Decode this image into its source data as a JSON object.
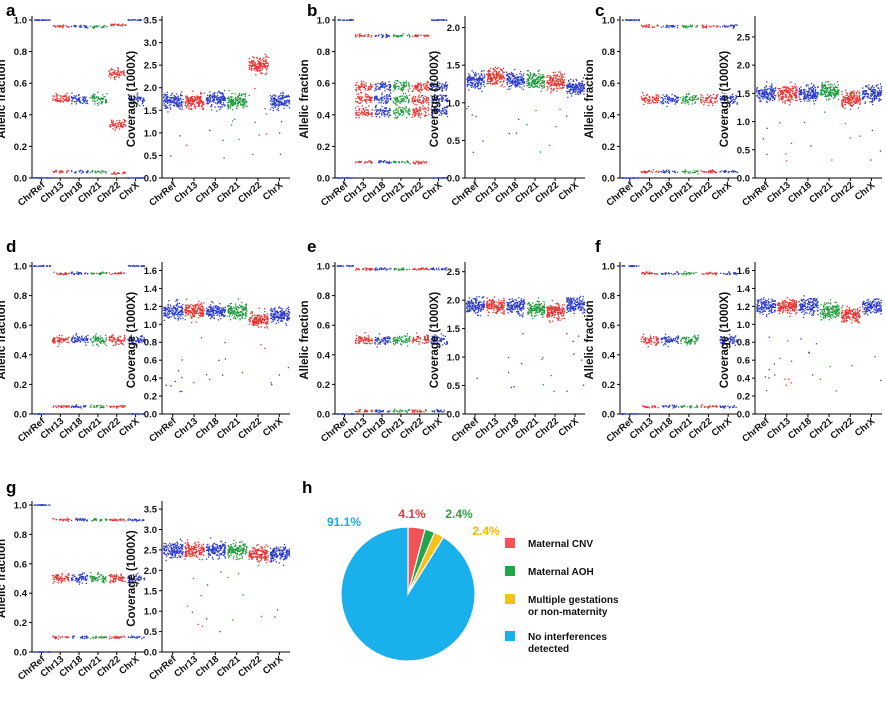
{
  "colors": {
    "ChrRef": "#2b3ac9",
    "Chr13": "#e8302e",
    "Chr18": "#2b3ac9",
    "Chr21": "#1f9a3a",
    "Chr22": "#e8302e",
    "ChrX": "#2b3ac9",
    "pie": [
      "#f05454",
      "#21a54a",
      "#f5c21a",
      "#19b0ec"
    ],
    "pie_label": [
      "#e53935",
      "#27a33f",
      "#f5b800",
      "#19a9e6"
    ]
  },
  "panels": [
    {
      "letter": "a",
      "af": {
        "ylabel": "Allelic fraction",
        "yticks": [
          "0.0",
          "0.2",
          "0.4",
          "0.6",
          "0.8",
          "1.0"
        ],
        "ylim": [
          0,
          1.0
        ],
        "categories": [
          "ChrRef",
          "Chr13",
          "Chr18",
          "Chr21",
          "Chr22",
          "ChrX"
        ],
        "bands": {
          "ChrRef": [
            0.0,
            1.0
          ],
          "Chr13": [
            0.04,
            0.5,
            0.96
          ],
          "Chr18": [
            0.04,
            0.5,
            0.96
          ],
          "Chr21": [
            0.04,
            0.5,
            0.96
          ],
          "Chr22": [
            0.03,
            0.34,
            0.66,
            0.97
          ],
          "ChrX": [
            0.0,
            0.5,
            1.0
          ]
        }
      },
      "cov": {
        "ylabel": "Coverage (1000X)",
        "yticks": [
          "0.0",
          "0.5",
          "1.0",
          "1.5",
          "2.0",
          "2.5",
          "3.0",
          "3.5"
        ],
        "ylim": [
          0,
          3.5
        ],
        "categories": [
          "ChrRef",
          "Chr13",
          "Chr18",
          "Chr21",
          "Chr22",
          "ChrX"
        ],
        "means": {
          "ChrRef": 1.7,
          "Chr13": 1.7,
          "Chr18": 1.75,
          "Chr21": 1.7,
          "Chr22": 2.5,
          "ChrX": 1.7
        }
      }
    },
    {
      "letter": "b",
      "af": {
        "ylabel": "Allelic fraction",
        "yticks": [
          "0.0",
          "0.2",
          "0.4",
          "0.6",
          "0.8",
          "1.0"
        ],
        "ylim": [
          0,
          1.0
        ],
        "categories": [
          "ChrRef",
          "Chr13",
          "Chr18",
          "Chr21",
          "Chr22",
          "ChrX"
        ],
        "bands": {
          "ChrRef": [
            0.0,
            1.0
          ],
          "Chr13": [
            0.1,
            0.42,
            0.5,
            0.58,
            0.9
          ],
          "Chr18": [
            0.1,
            0.42,
            0.5,
            0.58,
            0.9
          ],
          "Chr21": [
            0.1,
            0.42,
            0.5,
            0.58,
            0.9
          ],
          "Chr22": [
            0.1,
            0.42,
            0.5,
            0.58,
            0.9
          ],
          "ChrX": [
            0.0,
            0.42,
            0.5,
            0.58,
            1.0
          ]
        }
      },
      "cov": {
        "ylabel": "Coverage (1000X)",
        "yticks": [
          "0.0",
          "0.5",
          "1.0",
          "1.5",
          "2.0"
        ],
        "ylim": [
          0,
          2.1
        ],
        "categories": [
          "ChrRef",
          "Chr13",
          "Chr18",
          "Chr21",
          "Chr22",
          "ChrX"
        ],
        "means": {
          "ChrRef": 1.3,
          "Chr13": 1.35,
          "Chr18": 1.3,
          "Chr21": 1.3,
          "Chr22": 1.28,
          "ChrX": 1.2
        }
      }
    },
    {
      "letter": "c",
      "af": {
        "ylabel": "Allelic fraction",
        "yticks": [
          "0.0",
          "0.2",
          "0.4",
          "0.6",
          "0.8",
          "1.0"
        ],
        "ylim": [
          0,
          1.0
        ],
        "categories": [
          "ChrRef",
          "Chr13",
          "Chr18",
          "Chr21",
          "Chr22",
          "ChrX"
        ],
        "bands": {
          "ChrRef": [
            0.0,
            1.0
          ],
          "Chr13": [
            0.04,
            0.5,
            0.96
          ],
          "Chr18": [
            0.04,
            0.5,
            0.96
          ],
          "Chr21": [
            0.04,
            0.5,
            0.96
          ],
          "Chr22": [
            0.04,
            0.5,
            0.96
          ],
          "ChrX": [
            0.04,
            0.5,
            0.96
          ]
        }
      },
      "cov": {
        "ylabel": "Coverage (1000X)",
        "yticks": [
          "0.0",
          "0.5",
          "1.0",
          "1.5",
          "2.0",
          "2.5"
        ],
        "ylim": [
          0,
          2.8
        ],
        "categories": [
          "ChrRef",
          "Chr13",
          "Chr18",
          "Chr21",
          "Chr22",
          "ChrX"
        ],
        "means": {
          "ChrRef": 1.5,
          "Chr13": 1.5,
          "Chr18": 1.5,
          "Chr21": 1.55,
          "Chr22": 1.4,
          "ChrX": 1.5
        }
      }
    },
    {
      "letter": "d",
      "af": {
        "ylabel": "Allelic fraction",
        "yticks": [
          "0.0",
          "0.2",
          "0.4",
          "0.6",
          "0.8",
          "1.0"
        ],
        "ylim": [
          0,
          1.0
        ],
        "categories": [
          "ChrRef",
          "Chr13",
          "Chr18",
          "Chr21",
          "Chr22",
          "ChrX"
        ],
        "bands": {
          "ChrRef": [
            0.0,
            1.0
          ],
          "Chr13": [
            0.05,
            0.5,
            0.95
          ],
          "Chr18": [
            0.05,
            0.5,
            0.95
          ],
          "Chr21": [
            0.05,
            0.5,
            0.95
          ],
          "Chr22": [
            0.05,
            0.5,
            0.95
          ],
          "ChrX": [
            0.0,
            0.5,
            1.0
          ]
        }
      },
      "cov": {
        "ylabel": "Coverage (1000X)",
        "yticks": [
          "0.0",
          "0.2",
          "0.4",
          "0.6",
          "0.8",
          "1.0",
          "1.2",
          "1.4",
          "1.6"
        ],
        "ylim": [
          0,
          1.65
        ],
        "categories": [
          "ChrRef",
          "Chr13",
          "Chr18",
          "Chr21",
          "Chr22",
          "ChrX"
        ],
        "means": {
          "ChrRef": 1.15,
          "Chr13": 1.15,
          "Chr18": 1.15,
          "Chr21": 1.15,
          "Chr22": 1.05,
          "ChrX": 1.1
        }
      }
    },
    {
      "letter": "e",
      "af": {
        "ylabel": "Allelic fraction",
        "yticks": [
          "0.0",
          "0.2",
          "0.4",
          "0.6",
          "0.8",
          "1.0"
        ],
        "ylim": [
          0,
          1.0
        ],
        "categories": [
          "ChrRef",
          "Chr13",
          "Chr18",
          "Chr21",
          "Chr22",
          "ChrX"
        ],
        "bands": {
          "ChrRef": [
            0.0,
            1.0
          ],
          "Chr13": [
            0.02,
            0.5,
            0.98
          ],
          "Chr18": [
            0.02,
            0.5,
            0.98
          ],
          "Chr21": [
            0.02,
            0.5,
            0.98
          ],
          "Chr22": [
            0.02,
            0.5,
            0.98
          ],
          "ChrX": [
            0.02,
            0.5,
            0.98
          ]
        }
      },
      "cov": {
        "ylabel": "Coverage (1000X)",
        "yticks": [
          "0.0",
          "0.5",
          "1.0",
          "1.5",
          "2.0",
          "2.5"
        ],
        "ylim": [
          0,
          2.6
        ],
        "categories": [
          "ChrRef",
          "Chr13",
          "Chr18",
          "Chr21",
          "Chr22",
          "ChrX"
        ],
        "means": {
          "ChrRef": 1.9,
          "Chr13": 1.9,
          "Chr18": 1.9,
          "Chr21": 1.85,
          "Chr22": 1.8,
          "ChrX": 1.9
        }
      }
    },
    {
      "letter": "f",
      "af": {
        "ylabel": "Allelic fraction",
        "yticks": [
          "0.0",
          "0.2",
          "0.4",
          "0.6",
          "0.8",
          "1.0"
        ],
        "ylim": [
          0,
          1.0
        ],
        "categories": [
          "ChrRef",
          "Chr13",
          "Chr18",
          "Chr21",
          "Chr22",
          "ChrX"
        ],
        "bands": {
          "ChrRef": [
            0.0,
            1.0
          ],
          "Chr13": [
            0.05,
            0.5,
            0.95
          ],
          "Chr18": [
            0.05,
            0.5,
            0.95
          ],
          "Chr21": [
            0.05,
            0.5,
            0.95
          ],
          "Chr22": [
            0.05,
            0.95
          ],
          "ChrX": [
            0.05,
            0.5,
            0.95
          ]
        }
      },
      "cov": {
        "ylabel": "Coverage (1000X)",
        "yticks": [
          "0.0",
          "0.2",
          "0.4",
          "0.6",
          "0.8",
          "1.0",
          "1.2",
          "1.4",
          "1.6"
        ],
        "ylim": [
          0,
          1.65
        ],
        "categories": [
          "ChrRef",
          "Chr13",
          "Chr18",
          "Chr21",
          "Chr22",
          "ChrX"
        ],
        "means": {
          "ChrRef": 1.2,
          "Chr13": 1.2,
          "Chr18": 1.2,
          "Chr21": 1.15,
          "Chr22": 1.1,
          "ChrX": 1.2
        }
      }
    },
    {
      "letter": "g",
      "af": {
        "ylabel": "Allelic fraction",
        "yticks": [
          "0.0",
          "0.2",
          "0.4",
          "0.6",
          "0.8",
          "1.0"
        ],
        "ylim": [
          0,
          1.0
        ],
        "categories": [
          "ChrRef",
          "Chr13",
          "Chr18",
          "Chr21",
          "Chr22",
          "ChrX"
        ],
        "bands": {
          "ChrRef": [
            0.0,
            1.0
          ],
          "Chr13": [
            0.1,
            0.5,
            0.9
          ],
          "Chr18": [
            0.1,
            0.5,
            0.9
          ],
          "Chr21": [
            0.1,
            0.5,
            0.9
          ],
          "Chr22": [
            0.1,
            0.5,
            0.9
          ],
          "ChrX": [
            0.1,
            0.5,
            0.9
          ]
        }
      },
      "cov": {
        "ylabel": "Coverage (1000X)",
        "yticks": [
          "0.0",
          "0.5",
          "1.0",
          "1.5",
          "2.0",
          "2.5",
          "3.0",
          "3.5"
        ],
        "ylim": [
          0,
          3.6
        ],
        "categories": [
          "ChrRef",
          "Chr13",
          "Chr18",
          "Chr21",
          "Chr22",
          "ChrX"
        ],
        "means": {
          "ChrRef": 2.5,
          "Chr13": 2.5,
          "Chr18": 2.5,
          "Chr21": 2.5,
          "Chr22": 2.4,
          "ChrX": 2.4
        }
      }
    }
  ],
  "pie": {
    "letter": "h",
    "chart_data": {
      "type": "pie",
      "categories": [
        "Maternal CNV",
        "Maternal AOH",
        "Multiple gestations or non-maternity",
        "No interferences detected"
      ],
      "values": [
        4.1,
        2.4,
        2.4,
        91.1
      ],
      "labels": [
        "4.1%",
        "2.4%",
        "2.4%",
        "91.1%"
      ]
    },
    "legend": [
      {
        "lines": [
          "Maternal CNV"
        ]
      },
      {
        "lines": [
          "Maternal AOH"
        ]
      },
      {
        "lines": [
          "Multiple gestations",
          "or non-maternity"
        ]
      },
      {
        "lines": [
          "No interferences",
          "detected"
        ]
      }
    ]
  }
}
